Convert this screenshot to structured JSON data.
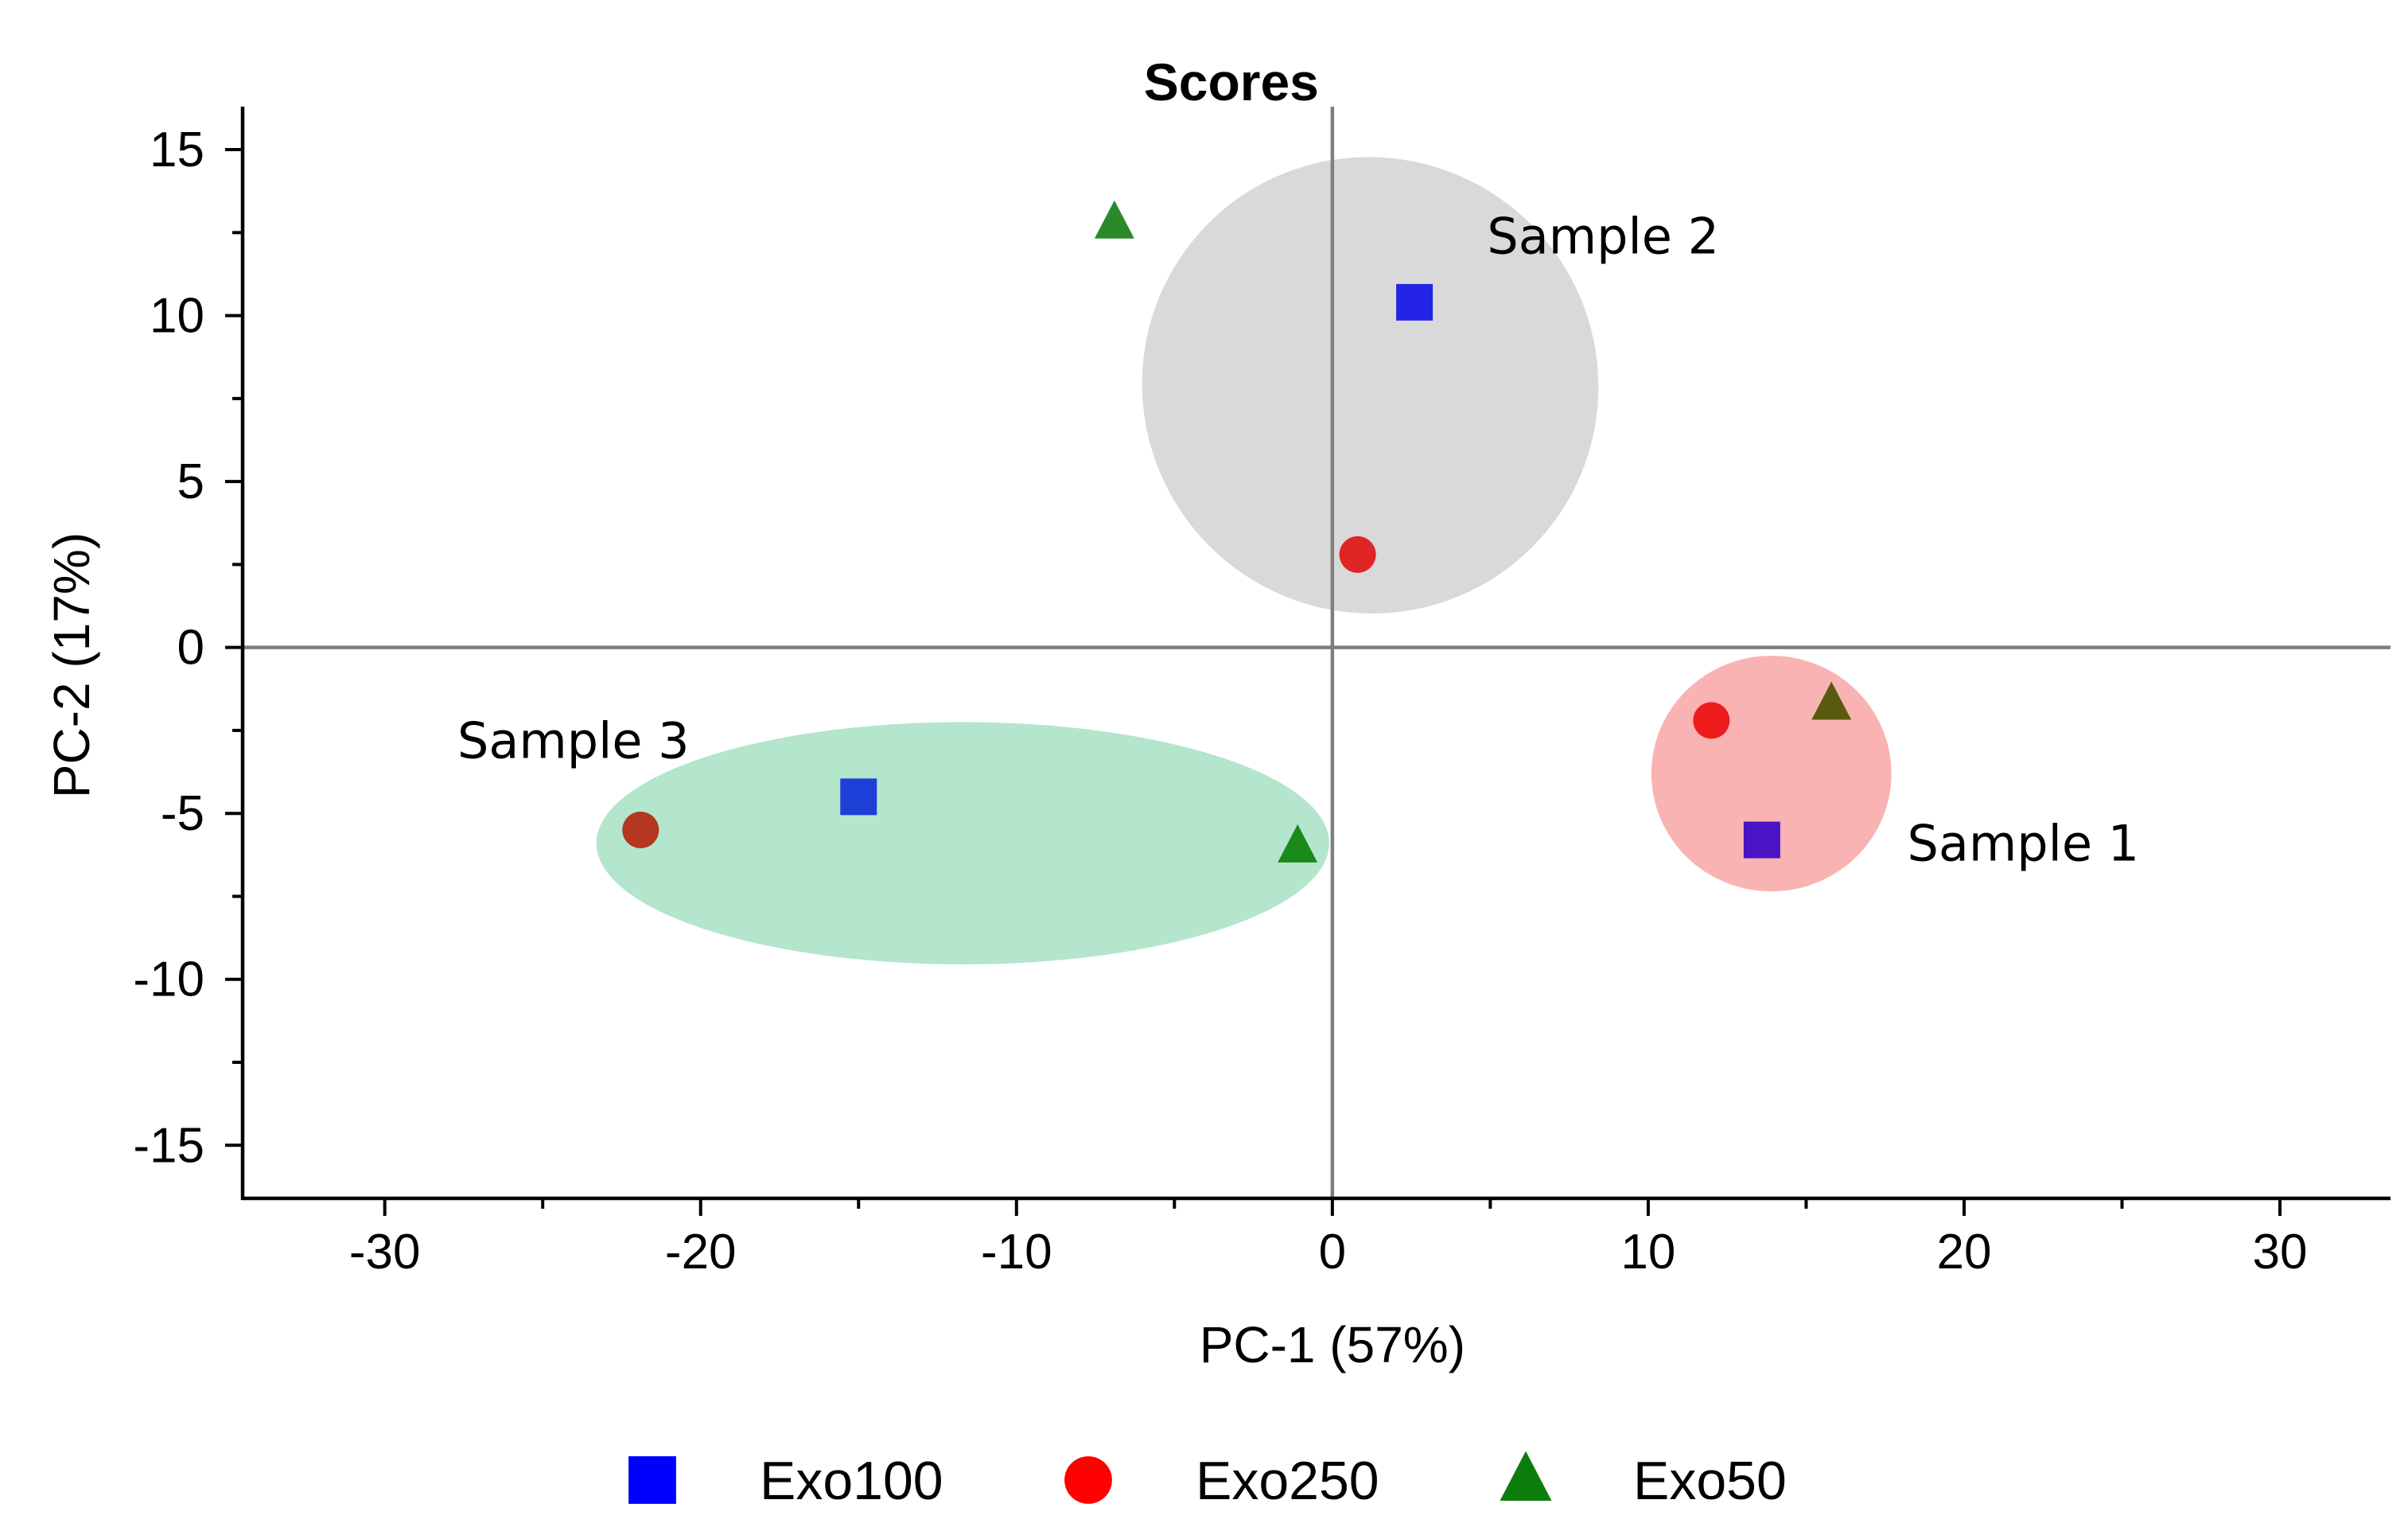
{
  "chart_data": {
    "type": "scatter",
    "title": "Scores",
    "xlabel": "PC-1 (57%)",
    "ylabel": "PC-2 (17%)",
    "xlim": [
      -34.5,
      33.5
    ],
    "ylim": [
      -16.6,
      16.2
    ],
    "xticks": [
      -30,
      -20,
      -10,
      0,
      10,
      20,
      30
    ],
    "yticks": [
      15,
      10,
      5,
      0,
      -5,
      -10,
      -15
    ],
    "xtick_labels": [
      "-30",
      "-20",
      "-10",
      "0",
      "10",
      "20",
      "30"
    ],
    "ytick_labels": [
      "15",
      "10",
      "5",
      "0",
      "-5",
      "-10",
      "-15"
    ],
    "grid": false,
    "zero_lines": true,
    "series": [
      {
        "name": "Exo100",
        "marker": "square",
        "color": "#0000ff",
        "points": [
          {
            "x": 2.6,
            "y": 10.4,
            "color": "#2424e6"
          },
          {
            "x": -15.0,
            "y": -4.5,
            "color": "#1f3fd9"
          },
          {
            "x": 13.6,
            "y": -5.8,
            "color": "#4a14c4"
          }
        ]
      },
      {
        "name": "Exo250",
        "marker": "circle",
        "color": "#ff0000",
        "points": [
          {
            "x": 0.8,
            "y": 2.8,
            "color": "#e02525"
          },
          {
            "x": -21.9,
            "y": -5.5,
            "color": "#b5371f"
          },
          {
            "x": 12.0,
            "y": -2.2,
            "color": "#ee1c1c"
          }
        ]
      },
      {
        "name": "Exo50",
        "marker": "triangle",
        "color": "#0a7d0a",
        "points": [
          {
            "x": -6.9,
            "y": 12.8,
            "color": "#2a8a2a"
          },
          {
            "x": -1.1,
            "y": -6.0,
            "color": "#1a8a1a"
          },
          {
            "x": 15.8,
            "y": -1.7,
            "color": "#5a5a0e"
          }
        ]
      }
    ],
    "groups": [
      {
        "label": "Sample 2",
        "cx": 1.2,
        "cy": 7.9,
        "rx": 7.2,
        "ry": 6.9,
        "rotation_deg": -45,
        "fill": "#d9d9d9",
        "label_anchor": [
          4.9,
          12.4
        ]
      },
      {
        "label": "Sample 3",
        "cx": -11.7,
        "cy": -5.9,
        "rx": 11.6,
        "ry": 3.65,
        "rotation_deg": 0,
        "fill": "#b3e6cc",
        "label_anchor": [
          -27.7,
          -2.8
        ]
      },
      {
        "label": "Sample 1",
        "cx": 13.9,
        "cy": -3.8,
        "rx": 3.8,
        "ry": 3.55,
        "rotation_deg": 0,
        "fill": "#f9b3b3",
        "label_anchor": [
          18.2,
          -5.9
        ]
      }
    ],
    "legend": {
      "position": "bottom-center",
      "entries": [
        {
          "label": "Exo100",
          "marker": "square",
          "color": "#0000ff"
        },
        {
          "label": "Exo250",
          "marker": "circle",
          "color": "#ff0000"
        },
        {
          "label": "Exo50",
          "marker": "triangle",
          "color": "#0a7d0a"
        }
      ]
    }
  }
}
